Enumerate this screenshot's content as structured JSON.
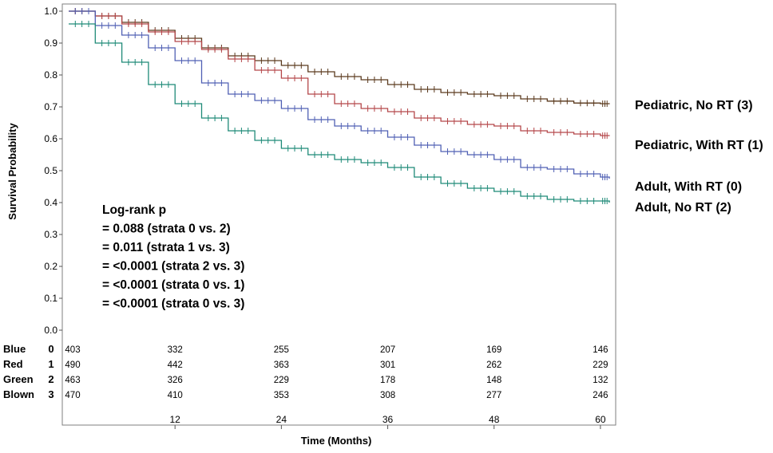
{
  "chart_data": {
    "type": "line",
    "subtype": "kaplan-meier",
    "title": "",
    "xlabel": "Time (Months)",
    "ylabel": "Survival Probability",
    "xlim": [
      0,
      61
    ],
    "ylim": [
      0,
      1
    ],
    "x_ticks": [
      12,
      24,
      36,
      48,
      60
    ],
    "x_tick_labels": [
      "12",
      "24",
      "36",
      "48",
      "60"
    ],
    "y_ticks": [
      0,
      0.1,
      0.2,
      0.3,
      0.4,
      0.5,
      0.6,
      0.7,
      0.8,
      0.9,
      1.0
    ],
    "y_tick_labels": [
      "0.0",
      "0.1",
      "0.2",
      "0.3",
      "0.4",
      "0.5",
      "0.6",
      "0.7",
      "0.8",
      "0.9",
      "1.0"
    ],
    "grid": false,
    "series": [
      {
        "name": "Pediatric, No RT (3)",
        "stratum": "3",
        "color": "#5b3a1e",
        "x": [
          0,
          3,
          6,
          9,
          12,
          15,
          18,
          21,
          24,
          27,
          30,
          33,
          36,
          39,
          42,
          45,
          48,
          51,
          54,
          57,
          60,
          61
        ],
        "y": [
          1.0,
          0.985,
          0.965,
          0.94,
          0.915,
          0.885,
          0.86,
          0.845,
          0.83,
          0.81,
          0.795,
          0.785,
          0.77,
          0.755,
          0.745,
          0.74,
          0.735,
          0.725,
          0.718,
          0.712,
          0.71,
          0.71
        ]
      },
      {
        "name": "Pediatric, With RT (1)",
        "stratum": "1",
        "color": "#b5474a",
        "x": [
          0,
          3,
          6,
          9,
          12,
          15,
          18,
          21,
          24,
          27,
          30,
          33,
          36,
          39,
          42,
          45,
          48,
          51,
          54,
          57,
          60,
          61
        ],
        "y": [
          1.0,
          0.985,
          0.96,
          0.935,
          0.905,
          0.88,
          0.85,
          0.815,
          0.79,
          0.74,
          0.71,
          0.695,
          0.685,
          0.665,
          0.655,
          0.645,
          0.64,
          0.625,
          0.62,
          0.615,
          0.61,
          0.61
        ]
      },
      {
        "name": "Adult, With RT (0)",
        "stratum": "0",
        "color": "#5060b4",
        "x": [
          0,
          3,
          6,
          9,
          12,
          15,
          18,
          21,
          24,
          27,
          30,
          33,
          36,
          39,
          42,
          45,
          48,
          51,
          54,
          57,
          60,
          61
        ],
        "y": [
          1.0,
          0.955,
          0.925,
          0.885,
          0.845,
          0.775,
          0.74,
          0.72,
          0.695,
          0.66,
          0.64,
          0.625,
          0.605,
          0.58,
          0.56,
          0.55,
          0.535,
          0.51,
          0.505,
          0.49,
          0.48,
          0.475
        ]
      },
      {
        "name": "Adult, No RT (2)",
        "stratum": "2",
        "color": "#1f8a78",
        "x": [
          0,
          3,
          6,
          9,
          12,
          15,
          18,
          21,
          24,
          27,
          30,
          33,
          36,
          39,
          42,
          45,
          48,
          51,
          54,
          57,
          60,
          61
        ],
        "y": [
          0.96,
          0.9,
          0.84,
          0.77,
          0.71,
          0.665,
          0.625,
          0.595,
          0.57,
          0.55,
          0.535,
          0.525,
          0.51,
          0.48,
          0.46,
          0.445,
          0.435,
          0.42,
          0.41,
          0.405,
          0.405,
          0.4
        ]
      }
    ],
    "annotation_lines": [
      "Log-rank p",
      "= 0.088 (strata  0 vs. 2)",
      "= 0.011 (strata  1 vs. 3)",
      "= <0.0001 (strata  2 vs. 3)",
      "= <0.0001 (strata  0 vs. 1)",
      "= <0.0001 (strata  0 vs. 3)"
    ],
    "risk_table": {
      "times": [
        0,
        12,
        24,
        36,
        48,
        60
      ],
      "rows": [
        {
          "label": "Blue",
          "stratum": "0",
          "values": [
            "403",
            "332",
            "255",
            "207",
            "169",
            "146"
          ]
        },
        {
          "label": "Red",
          "stratum": "1",
          "values": [
            "490",
            "442",
            "363",
            "301",
            "262",
            "229"
          ]
        },
        {
          "label": "Green",
          "stratum": "2",
          "values": [
            "463",
            "326",
            "229",
            "178",
            "148",
            "132"
          ]
        },
        {
          "label": "Blown",
          "stratum": "3",
          "values": [
            "470",
            "410",
            "353",
            "308",
            "277",
            "246"
          ]
        }
      ]
    },
    "legend_labels": [
      {
        "text": "Pediatric, No RT (3)",
        "y_value": 0.705
      },
      {
        "text": "Pediatric, With RT (1)",
        "y_value": 0.58
      },
      {
        "text": "Adult, With RT (0)",
        "y_value": 0.45
      },
      {
        "text": "Adult, No RT (2)",
        "y_value": 0.385
      }
    ]
  }
}
